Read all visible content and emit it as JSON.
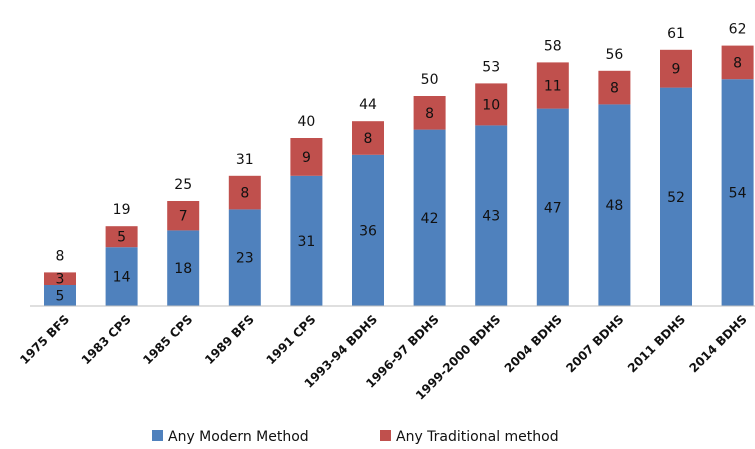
{
  "chart_data": {
    "type": "bar",
    "stacked": true,
    "categories": [
      "1975 BFS",
      "1983 CPS",
      "1985 CPS",
      "1989 BFS",
      "1991 CPS",
      "1993-94 BDHS",
      "1996-97 BDHS",
      "1999-2000 BDHS",
      "2004 BDHS",
      "2007 BDHS",
      "2011 BDHS",
      "2014 BDHS"
    ],
    "series": [
      {
        "name": "Any Modern Method",
        "color": "#4f81bd",
        "values": [
          5,
          14,
          18,
          23,
          31,
          36,
          42,
          43,
          47,
          48,
          52,
          54
        ]
      },
      {
        "name": "Any Traditional method",
        "color": "#c0504d",
        "values": [
          3,
          5,
          7,
          8,
          9,
          8,
          8,
          10,
          11,
          8,
          9,
          8
        ]
      }
    ],
    "totals": [
      8,
      19,
      25,
      31,
      40,
      44,
      50,
      53,
      58,
      56,
      61,
      62
    ],
    "ylim": [
      0,
      64
    ],
    "legend_position": "bottom",
    "grid": false
  }
}
